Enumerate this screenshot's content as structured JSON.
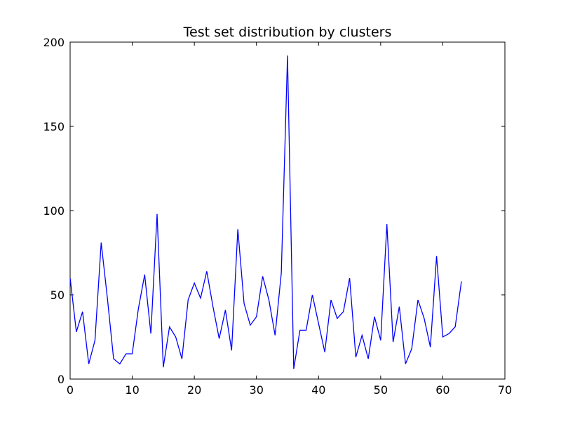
{
  "chart_data": {
    "type": "line",
    "title": "Test set distribution by clusters",
    "xlabel": "",
    "ylabel": "",
    "xlim": [
      0,
      70
    ],
    "ylim": [
      0,
      200
    ],
    "grid": false,
    "x_ticks": [
      0,
      10,
      20,
      30,
      40,
      50,
      60,
      70
    ],
    "y_ticks": [
      0,
      50,
      100,
      150,
      200
    ],
    "x_tick_labels": [
      "0",
      "10",
      "20",
      "30",
      "40",
      "50",
      "60",
      "70"
    ],
    "y_tick_labels": [
      "0",
      "50",
      "100",
      "150",
      "200"
    ],
    "series": [
      {
        "color": "#0000ff",
        "x": [
          0,
          1,
          2,
          3,
          4,
          5,
          6,
          7,
          8,
          9,
          10,
          11,
          12,
          13,
          14,
          15,
          16,
          17,
          18,
          19,
          20,
          21,
          22,
          23,
          24,
          25,
          26,
          27,
          28,
          29,
          30,
          31,
          32,
          33,
          34,
          35,
          36,
          37,
          38,
          39,
          40,
          41,
          42,
          43,
          44,
          45,
          46,
          47,
          48,
          49,
          50,
          51,
          52,
          53,
          54,
          55,
          56,
          57,
          58,
          59,
          60,
          61,
          62,
          63
        ],
        "y": [
          60,
          28,
          40,
          9,
          23,
          81,
          48,
          12,
          9,
          15,
          15,
          42,
          62,
          27,
          98,
          7,
          31,
          25,
          12,
          47,
          57,
          48,
          64,
          43,
          24,
          41,
          17,
          89,
          45,
          32,
          37,
          61,
          47,
          26,
          63,
          192,
          6,
          29,
          29,
          50,
          33,
          16,
          47,
          36,
          40,
          60,
          13,
          26,
          12,
          37,
          23,
          92,
          22,
          43,
          9,
          18,
          47,
          36,
          19,
          73,
          25,
          27,
          31,
          58
        ]
      }
    ]
  }
}
